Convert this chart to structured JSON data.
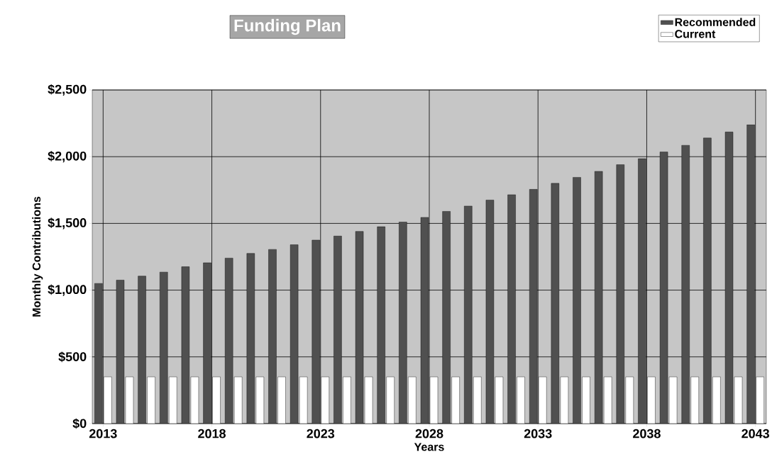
{
  "chart_data": {
    "type": "bar",
    "title": "Funding Plan",
    "xlabel": "Years",
    "ylabel": "Monthly Contributions",
    "categories": [
      "2013",
      null,
      null,
      null,
      null,
      "2018",
      null,
      null,
      null,
      null,
      "2023",
      null,
      null,
      null,
      null,
      "2028",
      null,
      null,
      null,
      null,
      "2033",
      null,
      null,
      null,
      null,
      "2038",
      null,
      null,
      null,
      null,
      "2043"
    ],
    "series": [
      {
        "name": "Recommended",
        "color": "#505050",
        "values": [
          1050,
          1075,
          1105,
          1135,
          1175,
          1205,
          1240,
          1275,
          1305,
          1340,
          1375,
          1405,
          1440,
          1475,
          1510,
          1545,
          1590,
          1630,
          1675,
          1715,
          1755,
          1800,
          1845,
          1890,
          1940,
          1985,
          2035,
          2085,
          2140,
          2185,
          2240
        ]
      },
      {
        "name": "Current",
        "color": "#ffffff",
        "values": [
          350,
          350,
          350,
          350,
          350,
          350,
          350,
          350,
          350,
          350,
          350,
          350,
          350,
          350,
          350,
          350,
          350,
          350,
          350,
          350,
          350,
          350,
          350,
          350,
          350,
          350,
          350,
          350,
          350,
          350,
          350
        ]
      }
    ],
    "ylim": [
      0,
      2500
    ],
    "yticks": [
      {
        "value": 0,
        "label": "$0"
      },
      {
        "value": 500,
        "label": "$500"
      },
      {
        "value": 1000,
        "label": "$1,000"
      },
      {
        "value": 1500,
        "label": "$1,500"
      },
      {
        "value": 2000,
        "label": "$2,000"
      },
      {
        "value": 2500,
        "label": "$2,500"
      }
    ],
    "grid": true,
    "legend": "top right"
  }
}
